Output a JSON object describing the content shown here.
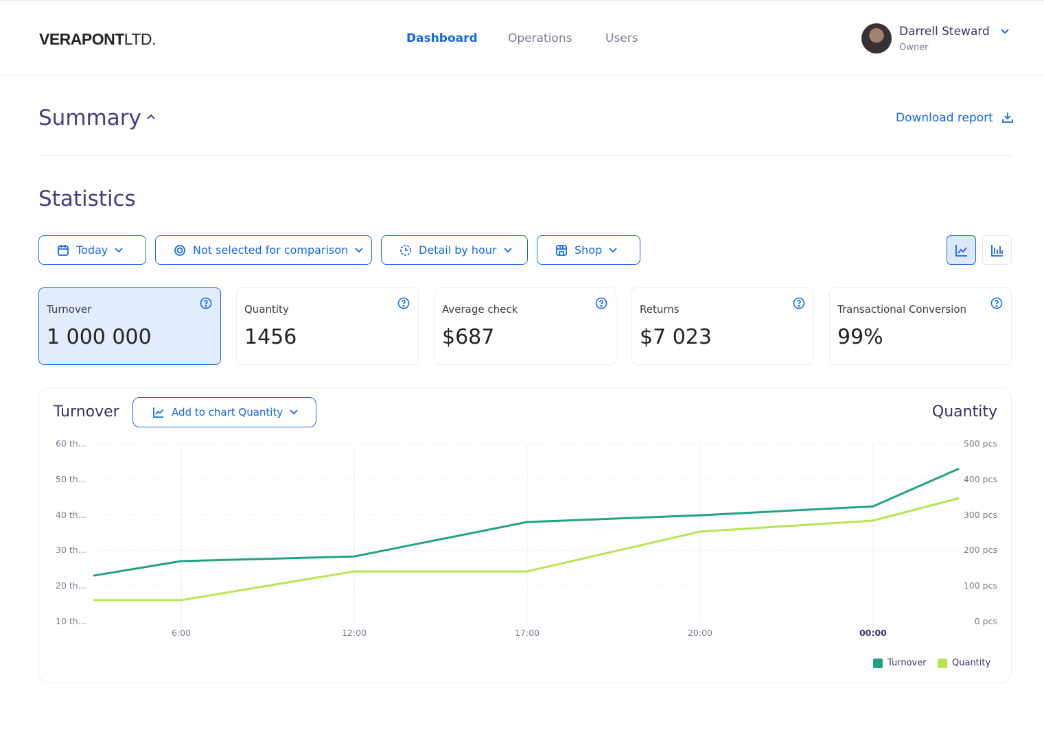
{
  "header": {
    "logo_bold": "VERAPONT",
    "logo_light": "LTD.",
    "nav": [
      {
        "label": "Dashboard",
        "active": true
      },
      {
        "label": "Operations"
      },
      {
        "label": "Users"
      }
    ],
    "user": {
      "name": "Darrell Steward",
      "role": "Owner"
    }
  },
  "summary": {
    "title": "Summary",
    "download_label": "Download report"
  },
  "statistics": {
    "title": "Statistics",
    "filters": [
      {
        "label": "Today",
        "icon": "calendar-icon"
      },
      {
        "label": "Not selected for comparison",
        "icon": "compare-icon"
      },
      {
        "label": "Detail by hour",
        "icon": "clock-icon"
      },
      {
        "label": "Shop",
        "icon": "shop-icon"
      }
    ],
    "view_toggle": {
      "selected": "line-chart"
    }
  },
  "cards": [
    {
      "title": "Turnover",
      "value": "1 000 000",
      "selected": true
    },
    {
      "title": "Quantity",
      "value": "1456"
    },
    {
      "title": "Average check",
      "value": "$687"
    },
    {
      "title": "Returns",
      "value": "$7 023"
    },
    {
      "title": "Transactional Conversion",
      "value": "99%"
    }
  ],
  "colors": {
    "accent": "#1565e8",
    "turnover": "#1fa383",
    "quantity": "#b5e550"
  },
  "chart_panel": {
    "left_title": "Turnover",
    "right_title": "Quantity",
    "add_button": "Add to chart Quantity"
  },
  "chart_data": {
    "type": "line",
    "categories": [
      "",
      "6:00",
      "12:00",
      "17:00",
      "20:00",
      "00:00",
      ""
    ],
    "highlight_category": "00:00",
    "y_left": {
      "ticks": [
        "60 th...",
        "50 th...",
        "40 th...",
        "30 th...",
        "20 th...",
        "10 th..."
      ],
      "range": [
        10000,
        60000
      ]
    },
    "y_right": {
      "ticks": [
        "500 pcs",
        "400 pcs",
        "300 pcs",
        "200 pcs",
        "100 pcs",
        "0 pcs"
      ],
      "range": [
        0,
        500
      ]
    },
    "series": [
      {
        "name": "Turnover",
        "axis": "left",
        "values": [
          22900,
          27000,
          28300,
          38000,
          39900,
          42400,
          53000
        ]
      },
      {
        "name": "Quantity",
        "axis": "right",
        "values": [
          60,
          60,
          141,
          141,
          253,
          284,
          347
        ]
      }
    ],
    "grid": true,
    "legend": "bottom-right"
  }
}
